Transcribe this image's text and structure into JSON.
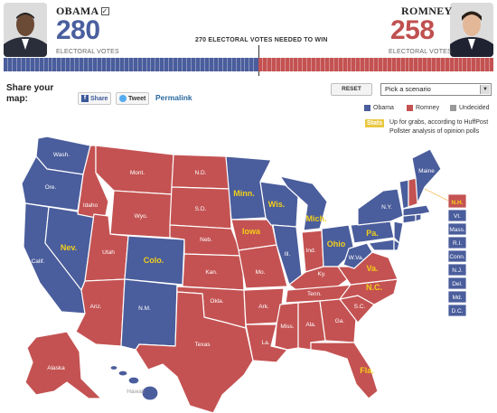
{
  "header": {
    "obama": {
      "name": "OBAMA",
      "check": "☑",
      "votes": "280",
      "votes_label": "ELECTORAL VOTES"
    },
    "romney": {
      "name": "ROMNEY",
      "votes": "258",
      "votes_label": "ELECTORAL VOTES"
    },
    "needed_label": "270 ELECTORAL VOTES NEEDED TO WIN"
  },
  "colors": {
    "obama": "#4a5d9c",
    "romney": "#c45252",
    "undecided": "#999999",
    "tossup_label": "#f2cf1a"
  },
  "controls": {
    "share_label": "Share your map:",
    "facebook_label": "Share",
    "twitter_label": "Tweet",
    "permalink_label": "Permalink",
    "reset_label": "RESET",
    "scenario_value": "Pick a scenario"
  },
  "legend": {
    "obama": "Obama",
    "romney": "Romney",
    "undecided": "Undecided",
    "stats_badge": "Stats",
    "stats_note": "Up for grabs, according to HuffPost Pollster analysis of opinion polls"
  },
  "states": {
    "wash": "Wash.",
    "ore": "Ore.",
    "calif": "Calif.",
    "nev": "Nev.",
    "idaho": "Idaho",
    "mont": "Mont.",
    "wyo": "Wyo.",
    "utah": "Utah",
    "colo": "Colo.",
    "ariz": "Ariz.",
    "nm": "N.M.",
    "nd": "N.D.",
    "sd": "S.D.",
    "neb": "Neb.",
    "kan": "Kan.",
    "okla": "Okla.",
    "texas": "Texas",
    "minn": "Minn.",
    "iowa": "Iowa",
    "mo": "Mo.",
    "ark": "Ark.",
    "la": "La.",
    "wis": "Wis.",
    "ill": "Ill.",
    "mich": "Mich.",
    "ind": "Ind.",
    "ohio": "Ohio",
    "ky": "Ky.",
    "tenn": "Tenn.",
    "miss": "Miss.",
    "ala": "Ala.",
    "ga": "Ga.",
    "fla": "Fla.",
    "sc": "S.C.",
    "nc": "N.C.",
    "va": "Va.",
    "wva": "W.Va.",
    "pa": "Pa.",
    "ny": "N.Y.",
    "maine": "Maine",
    "alaska": "Alaska",
    "hawaii": "Hawaii"
  },
  "small_states": [
    "N.H.",
    "Vt.",
    "Mass.",
    "R.I.",
    "Conn.",
    "N.J.",
    "Del.",
    "Md.",
    "D.C."
  ]
}
